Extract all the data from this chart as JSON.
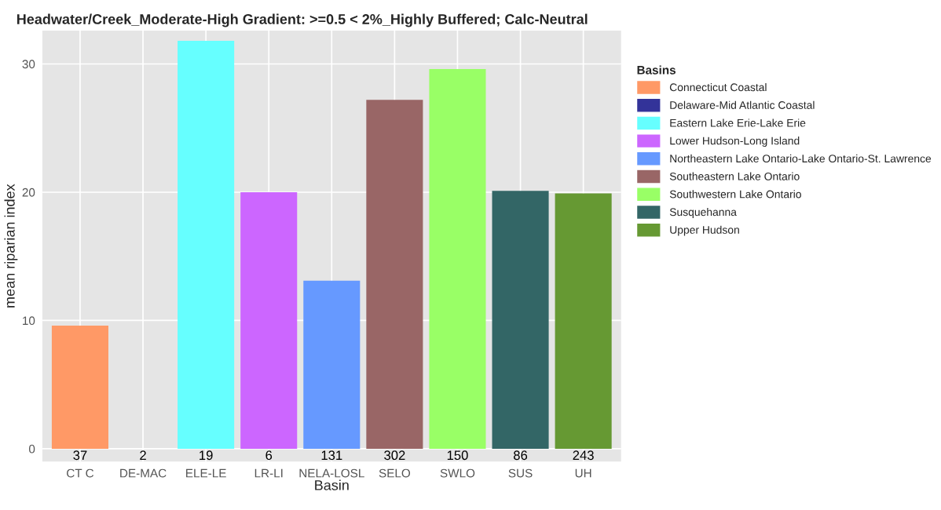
{
  "chart_data": {
    "type": "bar",
    "title": "Headwater/Creek_Moderate-High Gradient: >=0.5 < 2%_Highly Buffered; Calc-Neutral",
    "xlabel": "Basin",
    "ylabel": "mean riparian index",
    "legend_title": "Basins",
    "categories": [
      "CT C",
      "DE-MAC",
      "ELE-LE",
      "LR-LI",
      "NELA-LOSL",
      "SELO",
      "SWLO",
      "SUS",
      "UH"
    ],
    "series": [
      {
        "name": "Connecticut Coastal",
        "color": "#ff9966",
        "values": [
          9.6,
          null,
          null,
          null,
          null,
          null,
          null,
          null,
          null
        ]
      },
      {
        "name": "Delaware-Mid Atlantic Coastal",
        "color": "#333399",
        "values": [
          null,
          0,
          null,
          null,
          null,
          null,
          null,
          null,
          null
        ]
      },
      {
        "name": "Eastern Lake Erie-Lake Erie",
        "color": "#66ffff",
        "values": [
          null,
          null,
          31.8,
          null,
          null,
          null,
          null,
          null,
          null
        ]
      },
      {
        "name": "Lower Hudson-Long Island",
        "color": "#cc66ff",
        "values": [
          null,
          null,
          null,
          20.0,
          null,
          null,
          null,
          null,
          null
        ]
      },
      {
        "name": "Northeastern Lake Ontario-Lake Ontario-St. Lawrence",
        "color": "#6699ff",
        "values": [
          null,
          null,
          null,
          null,
          13.1,
          null,
          null,
          null,
          null
        ]
      },
      {
        "name": "Southeastern Lake Ontario",
        "color": "#996666",
        "values": [
          null,
          null,
          null,
          null,
          null,
          27.2,
          null,
          null,
          null
        ]
      },
      {
        "name": "Southwestern Lake Ontario",
        "color": "#99ff66",
        "values": [
          null,
          null,
          null,
          null,
          null,
          null,
          29.6,
          null,
          null
        ]
      },
      {
        "name": "Susquehanna",
        "color": "#336666",
        "values": [
          null,
          null,
          null,
          null,
          null,
          null,
          null,
          20.1,
          null
        ]
      },
      {
        "name": "Upper Hudson",
        "color": "#669933",
        "values": [
          null,
          null,
          null,
          null,
          null,
          null,
          null,
          null,
          19.9
        ]
      }
    ],
    "annotations": [
      "37",
      "2",
      "19",
      "6",
      "131",
      "302",
      "150",
      "86",
      "243"
    ],
    "ylim": [
      -1.0,
      32.6
    ],
    "yticks": [
      0,
      10,
      20,
      30
    ],
    "grid": true,
    "legend": "right"
  }
}
